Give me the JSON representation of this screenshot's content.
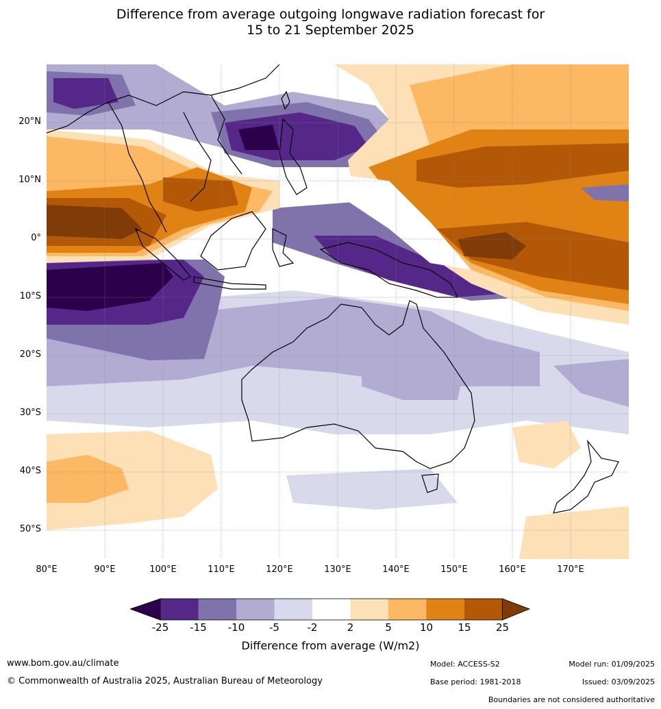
{
  "title_line1": "Difference from average outgoing longwave radiation forecast for",
  "title_line2": "15 to 21 September 2025",
  "lat_labels": [
    "20°N",
    "10°N",
    "0°",
    "10°S",
    "20°S",
    "30°S",
    "40°S",
    "50°S"
  ],
  "lon_labels": [
    "80°E",
    "90°E",
    "100°E",
    "110°E",
    "120°E",
    "130°E",
    "140°E",
    "150°E",
    "160°E",
    "170°E"
  ],
  "colorbar": {
    "ticks": [
      "-25",
      "-15",
      "-10",
      "-5",
      "-2",
      "2",
      "5",
      "10",
      "15",
      "25"
    ],
    "colors": [
      "#2d004b",
      "#542788",
      "#8073ac",
      "#b2abd2",
      "#d8daeb",
      "#ffffff",
      "#fee0b6",
      "#fdb863",
      "#e08214",
      "#b35806",
      "#7f3b08"
    ],
    "label": "Difference from average (W/m2)"
  },
  "footer": {
    "website": "www.bom.gov.au/climate",
    "copyright": "© Commonwealth of Australia 2025, Australian Bureau of Meteorology",
    "model": "Model: ACCESS-S2",
    "model_run": "Model run: 01/09/2025",
    "base_period": "Base period: 1981-2018",
    "issued": "Issued: 03/09/2025",
    "disclaimer": "Boundaries are not considered authoritative"
  }
}
